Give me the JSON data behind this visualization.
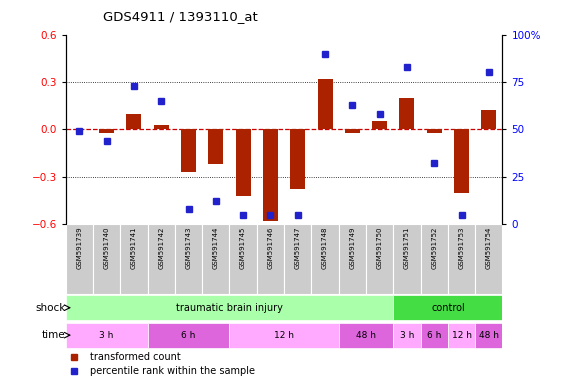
{
  "title": "GDS4911 / 1393110_at",
  "samples": [
    "GSM591739",
    "GSM591740",
    "GSM591741",
    "GSM591742",
    "GSM591743",
    "GSM591744",
    "GSM591745",
    "GSM591746",
    "GSM591747",
    "GSM591748",
    "GSM591749",
    "GSM591750",
    "GSM591751",
    "GSM591752",
    "GSM591753",
    "GSM591754"
  ],
  "bar_values": [
    0.0,
    -0.02,
    0.1,
    0.03,
    -0.27,
    -0.22,
    -0.42,
    -0.58,
    -0.38,
    0.32,
    -0.02,
    0.05,
    0.2,
    -0.02,
    -0.4,
    0.12
  ],
  "dot_values": [
    49,
    44,
    73,
    65,
    8,
    12,
    5,
    5,
    5,
    90,
    63,
    58,
    83,
    32,
    5,
    80
  ],
  "ylim_left": [
    -0.6,
    0.6
  ],
  "ylim_right": [
    0,
    100
  ],
  "yticks_left": [
    -0.6,
    -0.3,
    0.0,
    0.3,
    0.6
  ],
  "yticks_right": [
    0,
    25,
    50,
    75,
    100
  ],
  "ytick_labels_right": [
    "0",
    "25",
    "50",
    "75",
    "100%"
  ],
  "bar_color": "#aa2200",
  "dot_color": "#2222cc",
  "hline_color": "#cc0000",
  "dot_hline_color": "#cc0000",
  "grid_color": "#000000",
  "shock_groups": [
    {
      "label": "traumatic brain injury",
      "start": 0,
      "end": 12,
      "color": "#aaffaa"
    },
    {
      "label": "control",
      "start": 12,
      "end": 16,
      "color": "#44dd44"
    }
  ],
  "time_groups": [
    {
      "label": "3 h",
      "start": 0,
      "end": 3,
      "color": "#ffaaff"
    },
    {
      "label": "6 h",
      "start": 3,
      "end": 6,
      "color": "#dd66dd"
    },
    {
      "label": "12 h",
      "start": 6,
      "end": 10,
      "color": "#ffaaff"
    },
    {
      "label": "48 h",
      "start": 10,
      "end": 12,
      "color": "#dd66dd"
    },
    {
      "label": "3 h",
      "start": 12,
      "end": 13,
      "color": "#ffaaff"
    },
    {
      "label": "6 h",
      "start": 13,
      "end": 14,
      "color": "#dd66dd"
    },
    {
      "label": "12 h",
      "start": 14,
      "end": 15,
      "color": "#ffaaff"
    },
    {
      "label": "48 h",
      "start": 15,
      "end": 16,
      "color": "#dd66dd"
    }
  ],
  "shock_row_label": "shock",
  "time_row_label": "time",
  "legend_items": [
    {
      "label": "transformed count",
      "color": "#aa2200"
    },
    {
      "label": "percentile rank within the sample",
      "color": "#2222cc"
    }
  ],
  "bg_color": "#ffffff",
  "sample_box_color": "#cccccc"
}
